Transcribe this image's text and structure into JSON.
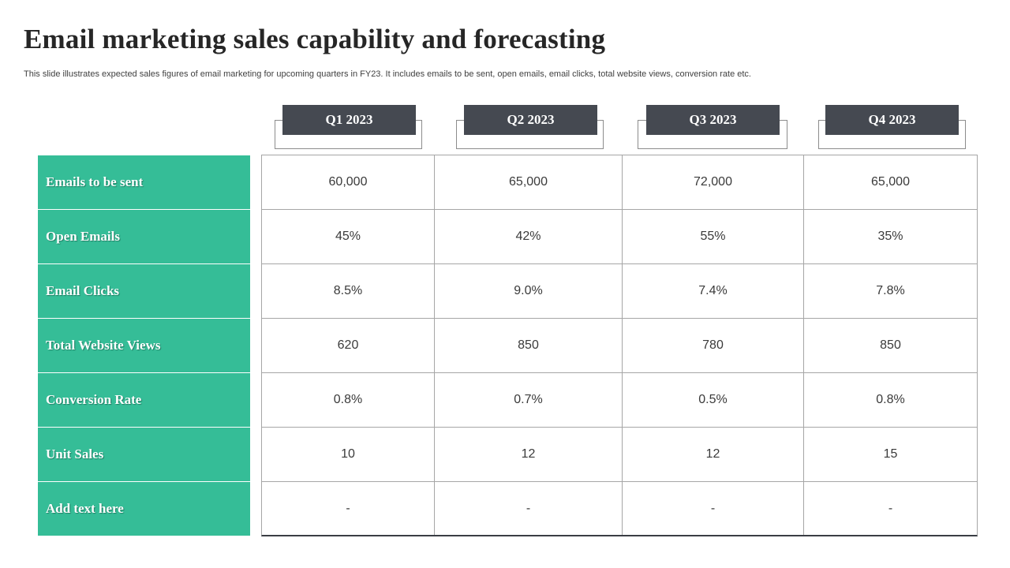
{
  "slide": {
    "title": "Email marketing sales capability and forecasting",
    "subtitle": "This slide illustrates expected sales figures of email marketing for upcoming quarters in FY23. It includes emails to be sent, open emails, email clicks, total website views, conversion rate etc."
  },
  "colors": {
    "header_fill": "#454951",
    "row_label_fill": "#35bd97",
    "grid_line": "#a6a6a6"
  },
  "table": {
    "columns": [
      "Q1 2023",
      "Q2 2023",
      "Q3 2023",
      "Q4 2023"
    ],
    "rows": [
      {
        "label": "Emails to be sent",
        "values": [
          "60,000",
          "65,000",
          "72,000",
          "65,000"
        ]
      },
      {
        "label": "Open Emails",
        "values": [
          "45%",
          "42%",
          "55%",
          "35%"
        ]
      },
      {
        "label": "Email Clicks",
        "values": [
          "8.5%",
          "9.0%",
          "7.4%",
          "7.8%"
        ]
      },
      {
        "label": "Total Website Views",
        "values": [
          "620",
          "850",
          "780",
          "850"
        ]
      },
      {
        "label": "Conversion Rate",
        "values": [
          "0.8%",
          "0.7%",
          "0.5%",
          "0.8%"
        ]
      },
      {
        "label": "Unit Sales",
        "values": [
          "10",
          "12",
          "12",
          "15"
        ]
      },
      {
        "label": "Add text here",
        "values": [
          "-",
          "-",
          "-",
          "-"
        ]
      }
    ]
  }
}
